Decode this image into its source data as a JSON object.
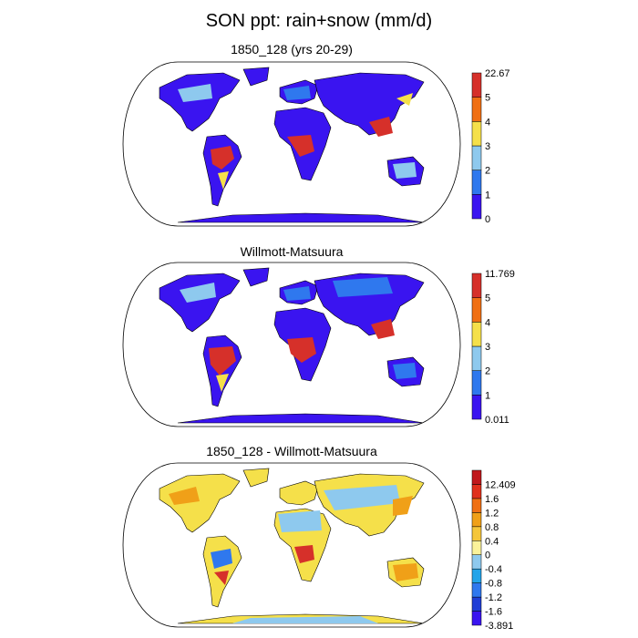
{
  "title": "SON ppt: rain+snow (mm/d)",
  "chart_data": [
    {
      "type": "heatmap",
      "title": "1850_128 (yrs 20-29)",
      "colorbar": {
        "colors": [
          "#3a14f0",
          "#2f78ee",
          "#8ec9ee",
          "#f5e04a",
          "#f07014",
          "#d6302a"
        ],
        "labels": [
          "0",
          "1",
          "2",
          "3",
          "4",
          "5",
          "22.67"
        ]
      }
    },
    {
      "type": "heatmap",
      "title": "Willmott-Matsuura",
      "colorbar": {
        "colors": [
          "#3a14f0",
          "#2f78ee",
          "#8ec9ee",
          "#f5e04a",
          "#f07014",
          "#d6302a"
        ],
        "labels": [
          "0.011",
          "1",
          "2",
          "3",
          "4",
          "5",
          "11.769"
        ]
      }
    },
    {
      "type": "heatmap",
      "title": "1850_128 - Willmott-Matsuura",
      "colorbar": {
        "colors": [
          "#3a14f0",
          "#1f3ed6",
          "#2f78ee",
          "#22a4ea",
          "#8ec9ee",
          "#fbf29a",
          "#f5c63a",
          "#f0a018",
          "#f07014",
          "#e0301c",
          "#c0181c"
        ],
        "labels": [
          "-3.891",
          "-1.6",
          "-1.2",
          "-0.8",
          "-0.4",
          "0",
          "0.4",
          "0.8",
          "1.2",
          "1.6",
          "12.409"
        ]
      }
    }
  ]
}
